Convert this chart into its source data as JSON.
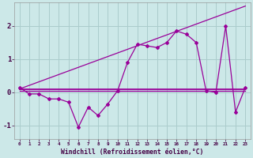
{
  "title": "",
  "xlabel": "Windchill (Refroidissement éolien,°C)",
  "xlim": [
    -0.5,
    23.5
  ],
  "ylim": [
    -1.4,
    2.7
  ],
  "yticks": [
    -1,
    0,
    1,
    2
  ],
  "xticks": [
    0,
    1,
    2,
    3,
    4,
    5,
    6,
    7,
    8,
    9,
    10,
    11,
    12,
    13,
    14,
    15,
    16,
    17,
    18,
    19,
    20,
    21,
    22,
    23
  ],
  "xtick_labels": [
    "0",
    "1",
    "2",
    "3",
    "4",
    "5",
    "6",
    "7",
    "8",
    "9",
    "10",
    "11",
    "12",
    "13",
    "14",
    "15",
    "16",
    "17",
    "18",
    "19",
    "20",
    "21",
    "22",
    "23"
  ],
  "bg_color": "#cce8e8",
  "grid_color": "#aacccc",
  "line_color": "#990099",
  "series1_x": [
    0,
    1,
    2,
    3,
    4,
    5,
    6,
    7,
    8,
    9,
    10,
    11,
    12,
    13,
    14,
    15,
    16,
    17,
    18,
    19,
    20,
    21,
    22,
    23
  ],
  "series1_y": [
    0.15,
    -0.05,
    -0.05,
    -0.2,
    -0.2,
    -0.3,
    -1.05,
    -0.45,
    -0.7,
    -0.35,
    0.05,
    0.9,
    1.45,
    1.4,
    1.35,
    1.5,
    1.85,
    1.75,
    1.5,
    0.05,
    0.0,
    2.0,
    -0.6,
    0.15
  ],
  "series2_x": [
    0,
    23
  ],
  "series2_y": [
    0.1,
    0.1
  ],
  "series3_x": [
    0,
    23
  ],
  "series3_y": [
    0.1,
    2.6
  ],
  "series4_x": [
    0,
    23
  ],
  "series4_y": [
    0.05,
    0.05
  ]
}
